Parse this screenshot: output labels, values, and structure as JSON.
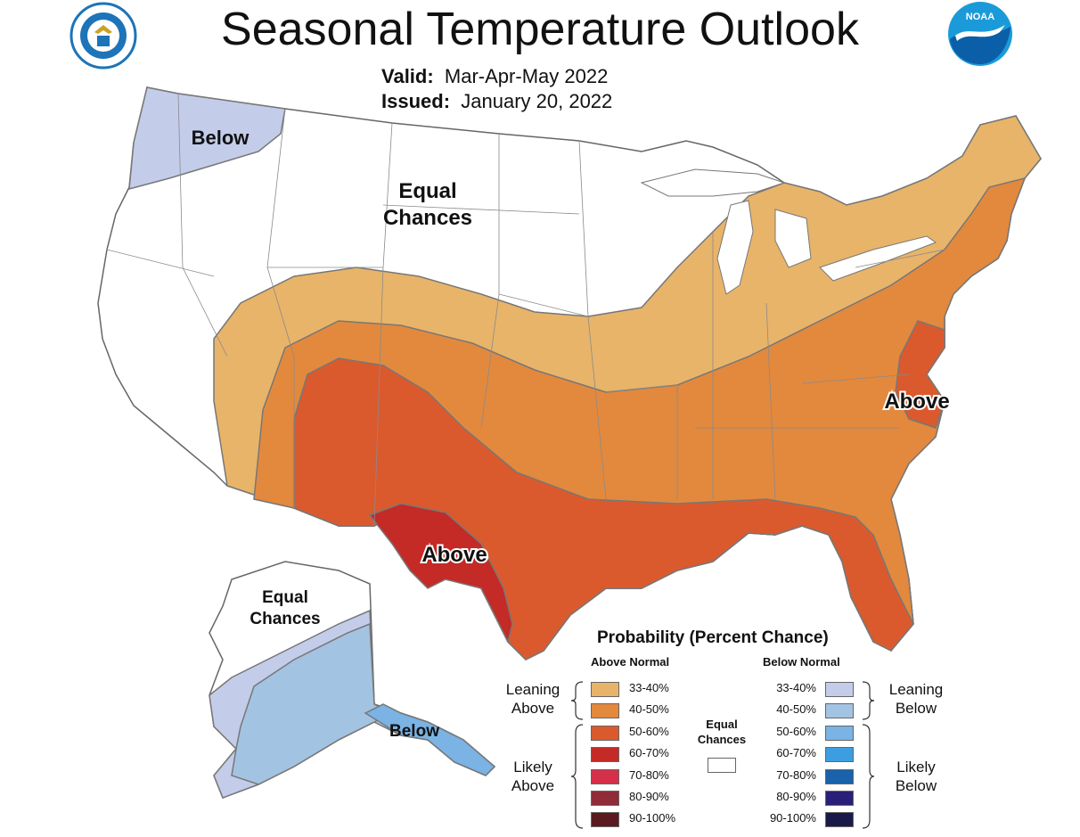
{
  "header": {
    "title": "Seasonal Temperature Outlook",
    "valid_label": "Valid:",
    "valid_value": "Mar-Apr-May 2022",
    "issued_label": "Issued:",
    "issued_value": "January 20, 2022"
  },
  "logos": {
    "left": "department-of-commerce-seal",
    "right": "noaa-logo",
    "right_text": "NOAA"
  },
  "map_labels": {
    "nw_below": "Below",
    "equal_line1": "Equal",
    "equal_line2": "Chances",
    "east_above": "Above",
    "texas_above": "Above",
    "ak_equal_line1": "Equal",
    "ak_equal_line2": "Chances",
    "ak_below": "Below"
  },
  "legend": {
    "title": "Probability (Percent Chance)",
    "above_header": "Above Normal",
    "below_header": "Below Normal",
    "equal_line1": "Equal",
    "equal_line2": "Chances",
    "leaning_above": [
      "Leaning",
      "Above"
    ],
    "likely_above": [
      "Likely",
      "Above"
    ],
    "leaning_below": [
      "Leaning",
      "Below"
    ],
    "likely_below": [
      "Likely",
      "Below"
    ],
    "above": [
      {
        "range": "33-40%",
        "color": "#e8b469"
      },
      {
        "range": "40-50%",
        "color": "#e2893e"
      },
      {
        "range": "50-60%",
        "color": "#da5a2e"
      },
      {
        "range": "60-70%",
        "color": "#c42a26"
      },
      {
        "range": "70-80%",
        "color": "#d4304a"
      },
      {
        "range": "80-90%",
        "color": "#902b38"
      },
      {
        "range": "90-100%",
        "color": "#5a1a20"
      }
    ],
    "below": [
      {
        "range": "33-40%",
        "color": "#c3cdea"
      },
      {
        "range": "40-50%",
        "color": "#a3c3e2"
      },
      {
        "range": "50-60%",
        "color": "#7ab3e4"
      },
      {
        "range": "60-70%",
        "color": "#3c9ee0"
      },
      {
        "range": "70-80%",
        "color": "#1a62ab"
      },
      {
        "range": "80-90%",
        "color": "#2a1f78"
      },
      {
        "range": "90-100%",
        "color": "#1a1a4a"
      }
    ],
    "equal_color": "#ffffff"
  }
}
